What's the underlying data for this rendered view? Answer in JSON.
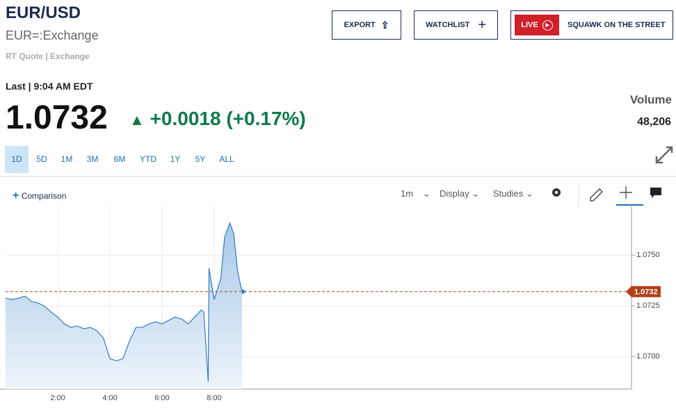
{
  "header": {
    "title": "EUR/USD",
    "symbol": "EUR=:Exchange",
    "source": "RT Quote | Exchange"
  },
  "actions": {
    "export": "EXPORT",
    "watchlist": "WATCHLIST",
    "live": "LIVE",
    "squawk": "SQUAWK ON THE STREET"
  },
  "quote": {
    "last_label": "Last | 9:04 AM EDT",
    "change": "+0.0018",
    "change_percent": "(+0.17%)",
    "volume_label": "Volume",
    "volume": "48,206"
  },
  "ranges": [
    "1D",
    "5D",
    "1M",
    "3M",
    "6M",
    "YTD",
    "1Y",
    "5Y",
    "ALL"
  ],
  "selected_range": 0,
  "toolbar": {
    "comparison": "Comparison",
    "interval": "1m",
    "display": "Display",
    "studies": "Studies"
  },
  "chart_data": {
    "type": "area",
    "x": [
      0,
      0.25,
      0.5,
      0.75,
      1,
      1.25,
      1.5,
      1.75,
      2,
      2.25,
      2.5,
      2.75,
      3,
      3.25,
      3.5,
      3.75,
      4,
      4.25,
      4.5,
      4.75,
      5,
      5.25,
      5.5,
      5.75,
      6,
      6.25,
      6.5,
      6.75,
      7,
      7.25,
      7.5,
      7.6,
      7.77,
      7.8,
      8,
      8.25,
      8.4,
      8.6,
      8.75,
      8.9,
      9.067
    ],
    "values": [
      1.07288,
      1.07281,
      1.07288,
      1.07298,
      1.07271,
      1.07264,
      1.07247,
      1.07219,
      1.07195,
      1.07161,
      1.07144,
      1.07151,
      1.07137,
      1.07144,
      1.07127,
      1.07092,
      1.0699,
      1.06979,
      1.0699,
      1.07075,
      1.07144,
      1.07144,
      1.07161,
      1.07171,
      1.07161,
      1.07178,
      1.07195,
      1.07185,
      1.07161,
      1.07195,
      1.07229,
      1.07219,
      1.06877,
      1.07435,
      1.07281,
      1.07384,
      1.07589,
      1.07658,
      1.07606,
      1.07418,
      1.0732
    ],
    "color": "#2f7dc0",
    "xlim": [
      0,
      24
    ],
    "xticks": [
      {
        "value": 2,
        "label": "2:00"
      },
      {
        "value": 4,
        "label": "4:00"
      },
      {
        "value": 6,
        "label": "6:00"
      },
      {
        "value": 8,
        "label": "8:00"
      }
    ],
    "ylim": [
      1.0684,
      1.0774
    ],
    "yticks": [
      {
        "value": 1.07,
        "label": "1.0700"
      },
      {
        "value": 1.0725,
        "label": "1.0725"
      },
      {
        "value": 1.075,
        "label": "1.0750"
      }
    ],
    "grid": true,
    "last": 1.0732,
    "last_color": "#b3401a"
  }
}
